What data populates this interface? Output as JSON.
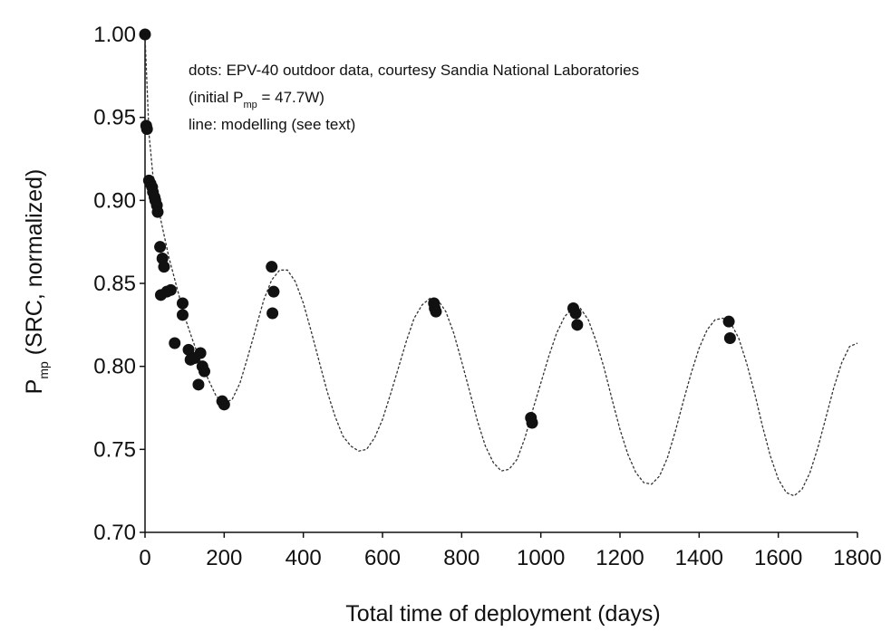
{
  "chart_data": {
    "type": "scatter",
    "xlabel": "Total time of deployment (days)",
    "ylabel_main": "P",
    "ylabel_sub": "mp",
    "ylabel_rest": " (SRC, normalized)",
    "xlim": [
      0,
      1800
    ],
    "ylim": [
      0.7,
      1.0
    ],
    "x_ticks": [
      0,
      200,
      400,
      600,
      800,
      1000,
      1200,
      1400,
      1600,
      1800
    ],
    "y_ticks": [
      0.7,
      0.75,
      0.8,
      0.85,
      0.9,
      0.95,
      1.0
    ],
    "x_tick_labels": [
      "0",
      "200",
      "400",
      "600",
      "800",
      "1000",
      "1200",
      "1400",
      "1600",
      "1800"
    ],
    "y_tick_labels": [
      "0.70",
      "0.75",
      "0.80",
      "0.85",
      "0.90",
      "0.95",
      "1.00"
    ],
    "annotations": {
      "line1": "dots: EPV-40 outdoor data, courtesy Sandia National Laboratories",
      "line2_pre": "(initial P",
      "line2_sub": "mp",
      "line2_post": " = 47.7W)",
      "line3": "line: modelling (see text)"
    },
    "series": [
      {
        "kind": "points",
        "points": [
          [
            0,
            1.0
          ],
          [
            3,
            0.945
          ],
          [
            5,
            0.943
          ],
          [
            10,
            0.912
          ],
          [
            14,
            0.91
          ],
          [
            18,
            0.908
          ],
          [
            20,
            0.905
          ],
          [
            24,
            0.902
          ],
          [
            26,
            0.9
          ],
          [
            30,
            0.897
          ],
          [
            32,
            0.893
          ],
          [
            38,
            0.872
          ],
          [
            44,
            0.865
          ],
          [
            48,
            0.86
          ],
          [
            40,
            0.843
          ],
          [
            55,
            0.845
          ],
          [
            65,
            0.846
          ],
          [
            75,
            0.814
          ],
          [
            95,
            0.838
          ],
          [
            95,
            0.831
          ],
          [
            110,
            0.81
          ],
          [
            115,
            0.804
          ],
          [
            125,
            0.805
          ],
          [
            140,
            0.808
          ],
          [
            145,
            0.8
          ],
          [
            150,
            0.797
          ],
          [
            135,
            0.789
          ],
          [
            195,
            0.779
          ],
          [
            200,
            0.777
          ],
          [
            320,
            0.86
          ],
          [
            325,
            0.845
          ],
          [
            322,
            0.832
          ],
          [
            730,
            0.838
          ],
          [
            732,
            0.835
          ],
          [
            735,
            0.833
          ],
          [
            975,
            0.769
          ],
          [
            978,
            0.766
          ],
          [
            1082,
            0.835
          ],
          [
            1088,
            0.832
          ],
          [
            1092,
            0.825
          ],
          [
            1475,
            0.827
          ],
          [
            1478,
            0.817
          ]
        ]
      },
      {
        "kind": "model-line",
        "points": [
          [
            0,
            0.999
          ],
          [
            10,
            0.94
          ],
          [
            20,
            0.915
          ],
          [
            40,
            0.888
          ],
          [
            60,
            0.866
          ],
          [
            80,
            0.848
          ],
          [
            100,
            0.83
          ],
          [
            120,
            0.816
          ],
          [
            140,
            0.803
          ],
          [
            160,
            0.792
          ],
          [
            180,
            0.782
          ],
          [
            200,
            0.778
          ],
          [
            220,
            0.78
          ],
          [
            240,
            0.79
          ],
          [
            260,
            0.806
          ],
          [
            280,
            0.823
          ],
          [
            300,
            0.84
          ],
          [
            320,
            0.852
          ],
          [
            340,
            0.858
          ],
          [
            360,
            0.858
          ],
          [
            380,
            0.851
          ],
          [
            400,
            0.838
          ],
          [
            420,
            0.821
          ],
          [
            440,
            0.803
          ],
          [
            460,
            0.785
          ],
          [
            480,
            0.77
          ],
          [
            500,
            0.758
          ],
          [
            520,
            0.752
          ],
          [
            540,
            0.749
          ],
          [
            560,
            0.75
          ],
          [
            580,
            0.757
          ],
          [
            600,
            0.768
          ],
          [
            620,
            0.783
          ],
          [
            640,
            0.799
          ],
          [
            660,
            0.815
          ],
          [
            680,
            0.829
          ],
          [
            700,
            0.837
          ],
          [
            720,
            0.841
          ],
          [
            740,
            0.84
          ],
          [
            760,
            0.833
          ],
          [
            780,
            0.82
          ],
          [
            800,
            0.803
          ],
          [
            820,
            0.785
          ],
          [
            840,
            0.767
          ],
          [
            860,
            0.752
          ],
          [
            880,
            0.742
          ],
          [
            900,
            0.737
          ],
          [
            920,
            0.738
          ],
          [
            940,
            0.744
          ],
          [
            960,
            0.757
          ],
          [
            980,
            0.774
          ],
          [
            1000,
            0.79
          ],
          [
            1020,
            0.806
          ],
          [
            1040,
            0.82
          ],
          [
            1060,
            0.83
          ],
          [
            1080,
            0.835
          ],
          [
            1100,
            0.835
          ],
          [
            1120,
            0.828
          ],
          [
            1140,
            0.815
          ],
          [
            1160,
            0.799
          ],
          [
            1180,
            0.78
          ],
          [
            1200,
            0.762
          ],
          [
            1220,
            0.747
          ],
          [
            1240,
            0.736
          ],
          [
            1260,
            0.73
          ],
          [
            1280,
            0.729
          ],
          [
            1300,
            0.734
          ],
          [
            1320,
            0.745
          ],
          [
            1340,
            0.761
          ],
          [
            1360,
            0.779
          ],
          [
            1380,
            0.796
          ],
          [
            1400,
            0.811
          ],
          [
            1420,
            0.822
          ],
          [
            1440,
            0.828
          ],
          [
            1460,
            0.829
          ],
          [
            1480,
            0.826
          ],
          [
            1500,
            0.817
          ],
          [
            1520,
            0.802
          ],
          [
            1540,
            0.784
          ],
          [
            1560,
            0.764
          ],
          [
            1580,
            0.746
          ],
          [
            1600,
            0.732
          ],
          [
            1620,
            0.724
          ],
          [
            1640,
            0.722
          ],
          [
            1660,
            0.726
          ],
          [
            1680,
            0.736
          ],
          [
            1700,
            0.751
          ],
          [
            1720,
            0.769
          ],
          [
            1740,
            0.787
          ],
          [
            1760,
            0.802
          ],
          [
            1780,
            0.812
          ],
          [
            1800,
            0.814
          ]
        ]
      }
    ]
  }
}
